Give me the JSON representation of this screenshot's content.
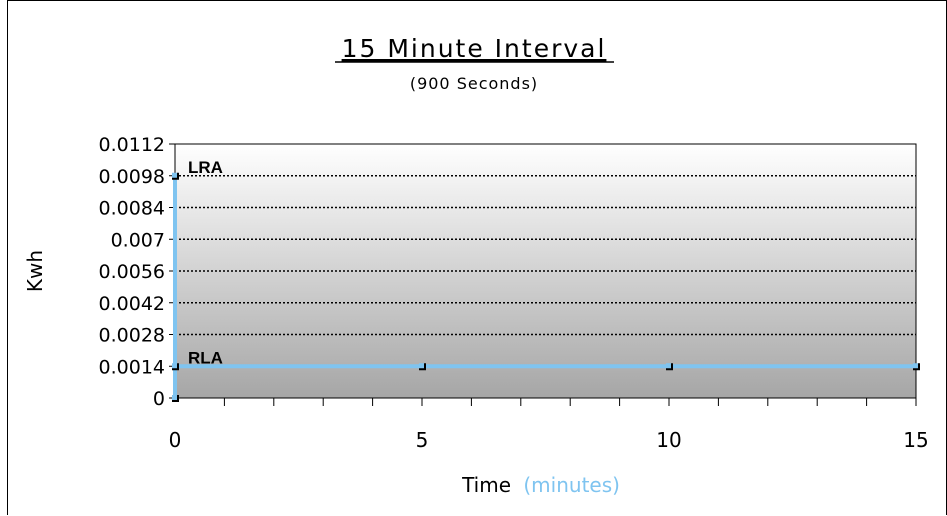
{
  "chart_data": {
    "type": "line",
    "title": "15 Minute Interval",
    "subtitle": "(900 Seconds)",
    "xlabel": "Time",
    "xlabel_unit": "(minutes)",
    "ylabel": "Kwh",
    "xlim": [
      0,
      15
    ],
    "ylim": [
      0,
      0.0112
    ],
    "x_ticks": [
      "0",
      "5",
      "10",
      "15"
    ],
    "y_ticks": [
      "0",
      "0.0014",
      "0.0028",
      "0.0042",
      "0.0056",
      "0.007",
      "0.0084",
      "0.0098",
      "0.0112"
    ],
    "y_tick_values": [
      0,
      0.0014,
      0.0028,
      0.0042,
      0.0056,
      0.007,
      0.0084,
      0.0098,
      0.0112
    ],
    "x_tick_values": [
      0,
      5,
      10,
      15
    ],
    "series": [
      {
        "x": [
          0,
          0,
          0,
          5,
          10,
          15
        ],
        "y": [
          0.0098,
          0,
          0.0014,
          0.0014,
          0.0014,
          0.0014
        ],
        "color": "#7fc4f0"
      }
    ],
    "annotations": [
      {
        "text": "LRA",
        "x": 0,
        "y": 0.0098
      },
      {
        "text": "RLA",
        "x": 0,
        "y": 0.0014
      }
    ],
    "grid": "horizontal dotted",
    "background": "gradient"
  }
}
